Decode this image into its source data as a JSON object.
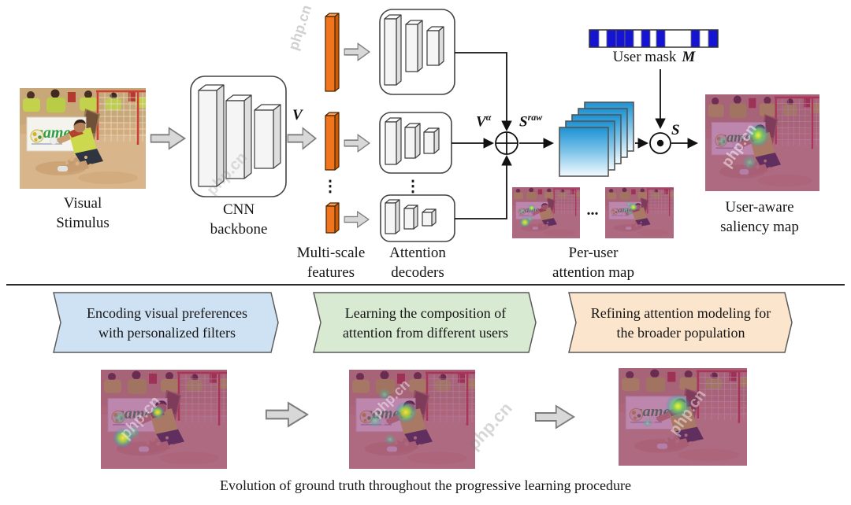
{
  "watermark": "php.cn",
  "figure": {
    "stimulus_label": "Visual\nStimulus",
    "cnn_label": "CNN\nbackbone",
    "v_label": "V",
    "features_label": "Multi-scale\nfeatures",
    "decoders_label": "Attention\ndecoders",
    "v_alpha": {
      "base": "V",
      "sup": "α"
    },
    "s_raw": {
      "base": "S",
      "sup": "raw"
    },
    "user_mask": {
      "label": "User mask",
      "symbol": "M",
      "blue": "#1414d2",
      "white": "#ffffff",
      "segments": [
        {
          "c": "b",
          "w": 12
        },
        {
          "c": "w",
          "w": 10
        },
        {
          "c": "b",
          "w": 12
        },
        {
          "c": "b",
          "w": 11
        },
        {
          "c": "b",
          "w": 11
        },
        {
          "c": "w",
          "w": 10
        },
        {
          "c": "b",
          "w": 11
        },
        {
          "c": "w",
          "w": 8
        },
        {
          "c": "b",
          "w": 11
        },
        {
          "c": "w",
          "w": 33
        },
        {
          "c": "b",
          "w": 11
        },
        {
          "c": "w",
          "w": 11
        },
        {
          "c": "b",
          "w": 12
        }
      ]
    },
    "s_label": "S",
    "ellipsis": "...",
    "vdots": "⋮",
    "per_user_label": "Per-user\nattention map",
    "user_aware_label": "User-aware\nsaliency map",
    "scene_banner_text": "games"
  },
  "stages": [
    {
      "label": "Encoding visual preferences\nwith personalized filters",
      "fill": "#cfe2f3"
    },
    {
      "label": "Learning the composition of\nattention from different users",
      "fill": "#d9ead3"
    },
    {
      "label": "Refining attention modeling for\nthe broader population",
      "fill": "#fce5cd"
    }
  ],
  "caption": "Evolution of ground truth throughout the progressive learning procedure",
  "colors": {
    "feature_bar": "#f0751d",
    "map_stack_blue": "#1b92d4",
    "mask_blue": "#1414d2"
  }
}
